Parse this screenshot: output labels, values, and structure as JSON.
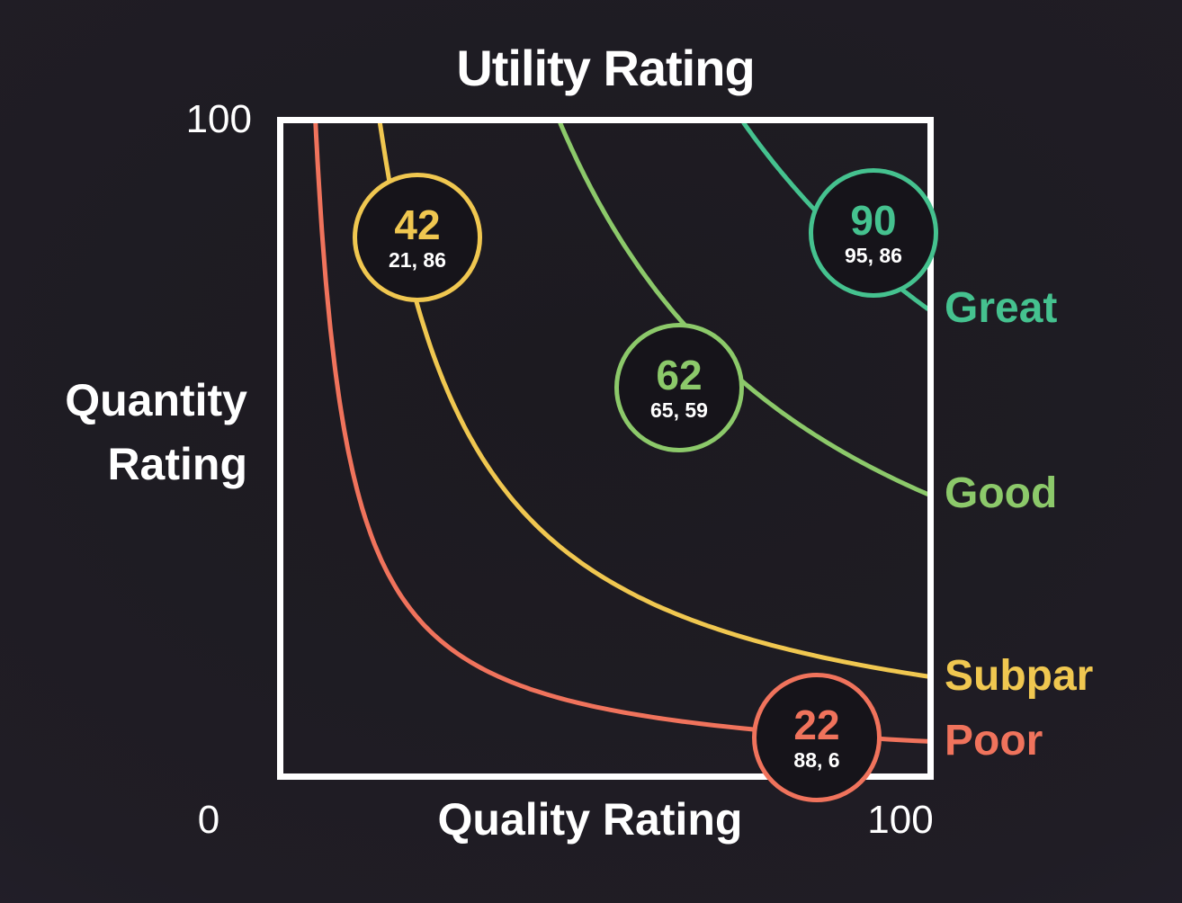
{
  "title": "Utility Rating",
  "x_axis": {
    "label": "Quality Rating",
    "min_label": "0",
    "max_label": "100"
  },
  "y_axis": {
    "label_lines": [
      "Quantity",
      "Rating"
    ],
    "max_label": "100"
  },
  "colors": {
    "background": "#201d24",
    "plot_border": "#ffffff",
    "text": "#ffffff",
    "circle_fill": "#16141a",
    "great": "#45c28f",
    "good": "#8cc96a",
    "subpar": "#f0c750",
    "poor": "#f0735c"
  },
  "chart_data": {
    "type": "line",
    "title": "Utility Rating",
    "xlabel": "Quality Rating",
    "ylabel": "Quantity Rating",
    "xlim": [
      0,
      100
    ],
    "ylim": [
      0,
      100
    ],
    "grid": false,
    "legend_position": "right",
    "curve_model": "indifference curves x*y = k, utility ~ sqrt(x*y)",
    "curves": [
      {
        "label": "Great",
        "utility": 90,
        "point": {
          "x": 95,
          "y": 86
        },
        "point_label": "95, 86",
        "k": 7150,
        "color": "#45c28f"
      },
      {
        "label": "Good",
        "utility": 62,
        "point": {
          "x": 65,
          "y": 59
        },
        "point_label": "65, 59",
        "k": 4300,
        "color": "#8cc96a"
      },
      {
        "label": "Subpar",
        "utility": 42,
        "point": {
          "x": 21,
          "y": 86
        },
        "point_label": "21, 86",
        "k": 1500,
        "color": "#f0c750"
      },
      {
        "label": "Poor",
        "utility": 22,
        "point": {
          "x": 88,
          "y": 6
        },
        "point_label": "88, 6",
        "k": 500,
        "color": "#f0735c"
      }
    ]
  }
}
